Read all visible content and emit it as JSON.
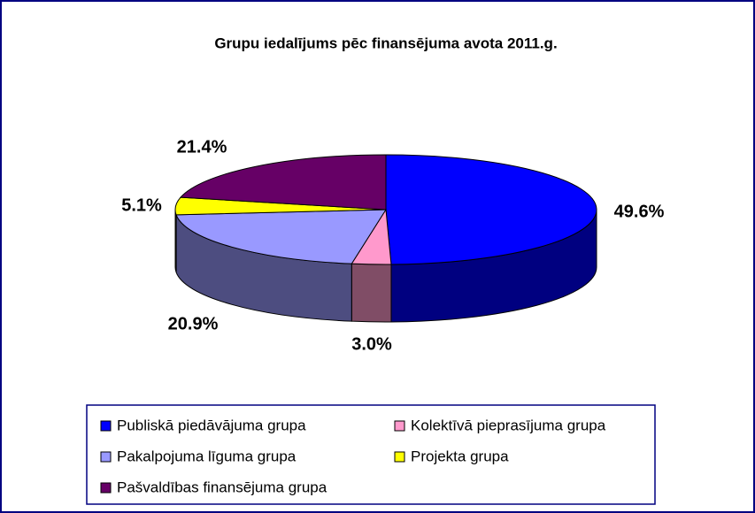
{
  "chart_data": {
    "type": "pie3d",
    "title": "Grupu iedalījums pēc finansējuma avota 2011.g.",
    "categories": [
      "Publiskā piedāvājuma grupa",
      "Kolektīvā pieprasījuma grupa",
      "Pakalpojuma līguma grupa",
      "Projekta grupa",
      "Pašvaldības finansējuma grupa"
    ],
    "values": [
      49.6,
      3.0,
      20.9,
      5.1,
      21.4
    ],
    "value_labels": [
      "49.6%",
      "3.0%",
      "20.9%",
      "5.1%",
      "21.4%"
    ],
    "colors": [
      "#0000ff",
      "#ff99cc",
      "#9999ff",
      "#ffff00",
      "#660066"
    ],
    "legend": "bottom"
  }
}
